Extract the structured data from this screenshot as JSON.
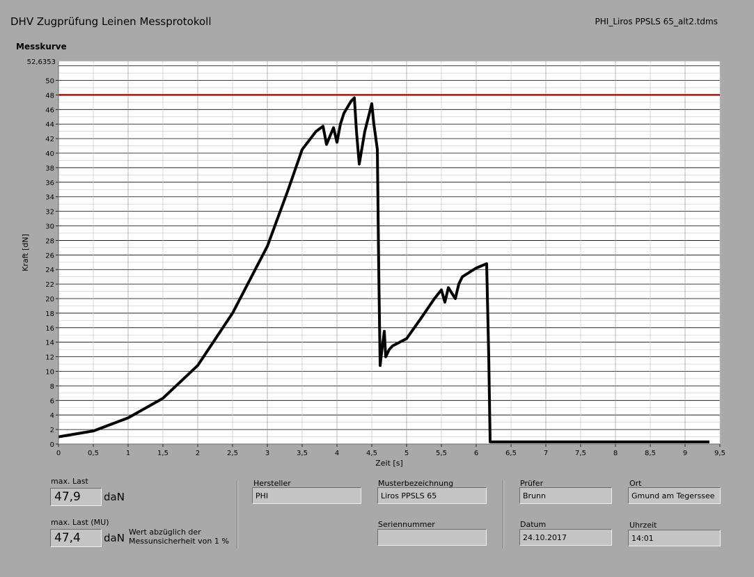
{
  "header": {
    "title": "DHV Zugprüfung Leinen Messprotokoll",
    "filename": "PHI_Liros PPSLS 65_alt2.tdms"
  },
  "chart_title": "Messkurve",
  "chart_data": {
    "type": "line",
    "xlabel": "Zeit [s]",
    "ylabel": "Kraft [dN]",
    "xlim": [
      0,
      9.5
    ],
    "ylim": [
      0,
      52.6353
    ],
    "y_top_label": "52,6353",
    "x_tick_labels": [
      "0",
      "0,5",
      "1",
      "1,5",
      "2",
      "2,5",
      "3",
      "3,5",
      "4",
      "4,5",
      "5",
      "5,5",
      "6",
      "6,5",
      "7",
      "7,5",
      "8",
      "8,5",
      "9",
      "9,5"
    ],
    "y_tick_labels": [
      "0",
      "2",
      "4",
      "6",
      "8",
      "10",
      "12",
      "14",
      "16",
      "18",
      "20",
      "22",
      "24",
      "26",
      "28",
      "30",
      "32",
      "34",
      "36",
      "38",
      "40",
      "42",
      "44",
      "46",
      "48",
      "50"
    ],
    "grid": true,
    "threshold": {
      "y": 48,
      "color": "#b01010"
    },
    "series": [
      {
        "color": "#000000",
        "x": [
          0,
          0.5,
          1.0,
          1.5,
          2.0,
          2.5,
          3.0,
          3.3,
          3.5,
          3.7,
          3.8,
          3.85,
          3.95,
          4.0,
          4.05,
          4.1,
          4.2,
          4.25,
          4.28,
          4.32,
          4.4,
          4.5,
          4.53,
          4.58,
          4.6,
          4.62,
          4.64,
          4.68,
          4.7,
          4.75,
          4.8,
          5.0,
          5.2,
          5.4,
          5.5,
          5.55,
          5.6,
          5.7,
          5.75,
          5.8,
          6.0,
          6.15,
          6.18,
          6.2,
          6.5,
          7.0,
          8.0,
          9.0,
          9.35
        ],
        "y": [
          1.0,
          1.8,
          3.6,
          6.3,
          10.8,
          18.0,
          27.2,
          35.0,
          40.5,
          43.0,
          43.7,
          41.2,
          43.5,
          41.5,
          44.0,
          45.5,
          47.1,
          47.6,
          43.0,
          38.5,
          43.0,
          46.8,
          44.0,
          40.5,
          24.0,
          10.8,
          12.5,
          15.5,
          12.0,
          13.0,
          13.5,
          14.5,
          17.2,
          20.0,
          21.2,
          19.5,
          21.5,
          20.0,
          22.0,
          23.0,
          24.2,
          24.8,
          12.0,
          0.3,
          0.3,
          0.3,
          0.3,
          0.3,
          0.3
        ]
      }
    ]
  },
  "results": {
    "max_load_label": "max. Last",
    "max_load_value": "47,9",
    "max_load_unit": "daN",
    "max_load_mu_label": "max. Last (MU)",
    "max_load_mu_value": "47,4",
    "max_load_mu_unit": "daN",
    "note_line1": "Wert abzüglich der",
    "note_line2": "Messunsicherheit von 1 %"
  },
  "info": {
    "manufacturer_label": "Hersteller",
    "manufacturer_value": "PHI",
    "model_label": "Musterbezeichnung",
    "model_value": "Liros PPSLS 65",
    "serial_label": "Seriennummer",
    "serial_value": "",
    "tester_label": "Prüfer",
    "tester_value": "Brunn",
    "location_label": "Ort",
    "location_value": "Gmund am Tegerssee",
    "date_label": "Datum",
    "date_value": "24.10.2017",
    "time_label": "Uhrzeit",
    "time_value": "14:01"
  }
}
